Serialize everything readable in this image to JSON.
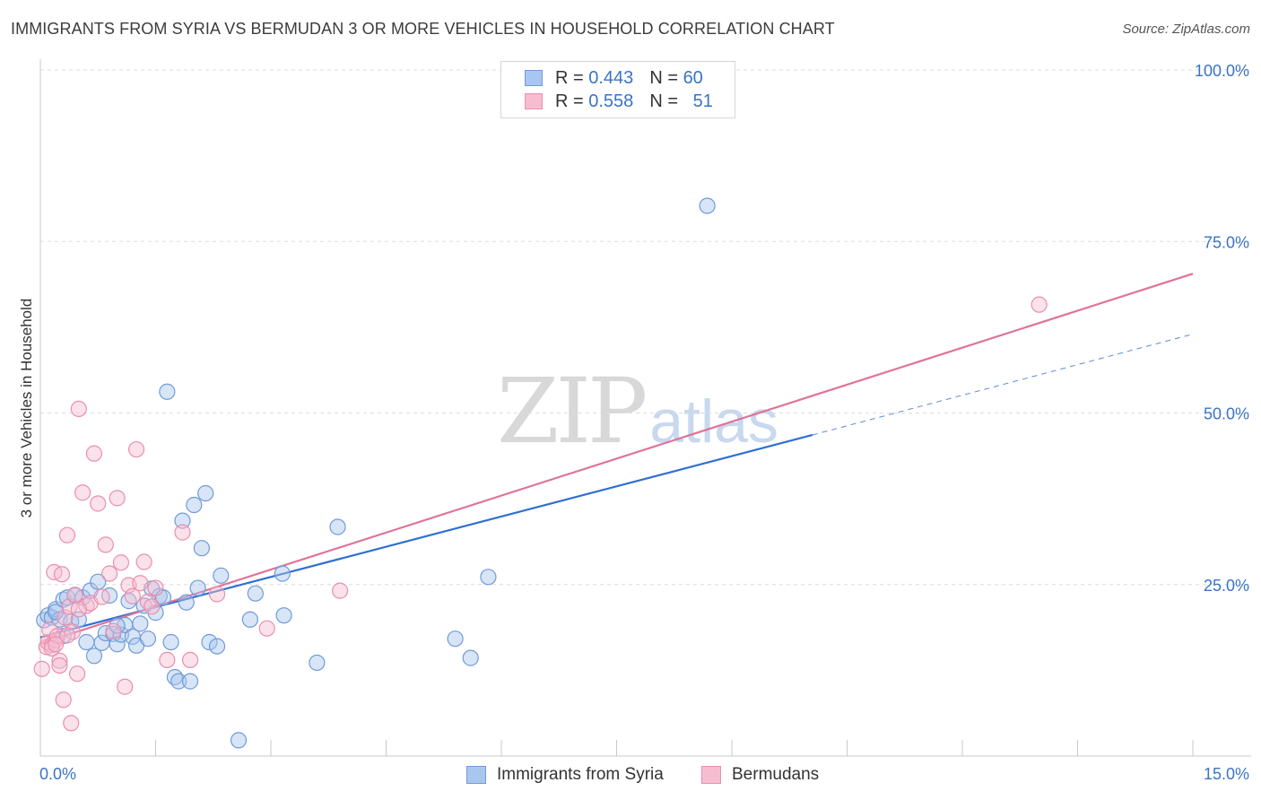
{
  "header": {
    "title": "IMMIGRANTS FROM SYRIA VS BERMUDAN 3 OR MORE VEHICLES IN HOUSEHOLD CORRELATION CHART",
    "source": "Source: ZipAtlas.com"
  },
  "watermark": {
    "zip": "ZIP",
    "atlas": "atlas"
  },
  "legend": {
    "rows": [
      {
        "r_label": "R =",
        "r_value": "0.443",
        "n_label": "N =",
        "n_value": "60",
        "color": "#a9c6ee",
        "border": "#6f9bd8"
      },
      {
        "r_label": "R =",
        "r_value": "0.558",
        "n_label": "N =",
        "n_value": "51",
        "color": "#f7bcd0",
        "border": "#e98fae"
      }
    ]
  },
  "bottom_legend": {
    "items": [
      {
        "label": "Immigrants from Syria",
        "color": "#a9c6ee",
        "border": "#6f9bd8"
      },
      {
        "label": "Bermudans",
        "color": "#f7bcd0",
        "border": "#e98fae"
      }
    ]
  },
  "chart_data": {
    "type": "scatter",
    "title": "IMMIGRANTS FROM SYRIA VS BERMUDAN 3 OR MORE VEHICLES IN HOUSEHOLD CORRELATION CHART",
    "xlabel": "",
    "ylabel": "3 or more Vehicles in Household",
    "xlim": [
      0,
      15
    ],
    "ylim": [
      0,
      100
    ],
    "x_tick_labels": [
      "0.0%",
      "15.0%"
    ],
    "y_tick_labels": [
      "25.0%",
      "50.0%",
      "75.0%",
      "100.0%"
    ],
    "y_ticks": [
      25,
      50,
      75,
      100
    ],
    "grid": true,
    "series": [
      {
        "name": "Immigrants from Syria",
        "color": "#6f9bd8",
        "fill": "#a9c6ee",
        "line_color": "#2f6fd1",
        "trend": {
          "x0": 0,
          "y0": 17.3,
          "x1": 10.05,
          "y1": 46.8,
          "dash_x1": 15,
          "dash_y1": 61.5
        },
        "points": [
          [
            0.05,
            19.8
          ],
          [
            0.1,
            20.5
          ],
          [
            0.15,
            20.2
          ],
          [
            0.2,
            21.4
          ],
          [
            0.25,
            19.9
          ],
          [
            0.3,
            22.8
          ],
          [
            0.35,
            23.1
          ],
          [
            0.4,
            19.6
          ],
          [
            0.45,
            23.4
          ],
          [
            0.5,
            19.9
          ],
          [
            0.55,
            23.1
          ],
          [
            0.6,
            16.6
          ],
          [
            0.65,
            24.1
          ],
          [
            0.7,
            14.6
          ],
          [
            0.75,
            25.4
          ],
          [
            0.8,
            16.5
          ],
          [
            0.85,
            17.9
          ],
          [
            0.9,
            23.4
          ],
          [
            0.95,
            17.8
          ],
          [
            1.0,
            16.3
          ],
          [
            1.05,
            17.7
          ],
          [
            1.1,
            19.1
          ],
          [
            1.15,
            22.6
          ],
          [
            1.2,
            17.4
          ],
          [
            1.25,
            16.1
          ],
          [
            1.3,
            19.3
          ],
          [
            1.35,
            21.9
          ],
          [
            1.4,
            17.1
          ],
          [
            1.45,
            24.4
          ],
          [
            1.5,
            20.9
          ],
          [
            1.55,
            23.3
          ],
          [
            1.6,
            23.1
          ],
          [
            1.65,
            53.1
          ],
          [
            1.7,
            16.6
          ],
          [
            1.75,
            11.5
          ],
          [
            1.8,
            10.9
          ],
          [
            1.85,
            34.3
          ],
          [
            1.9,
            22.4
          ],
          [
            1.95,
            10.9
          ],
          [
            2.0,
            36.6
          ],
          [
            2.05,
            24.5
          ],
          [
            2.1,
            30.3
          ],
          [
            2.15,
            38.3
          ],
          [
            2.2,
            16.6
          ],
          [
            2.3,
            16.0
          ],
          [
            2.35,
            26.3
          ],
          [
            2.58,
            2.3
          ],
          [
            2.73,
            19.9
          ],
          [
            2.8,
            23.7
          ],
          [
            3.15,
            26.6
          ],
          [
            3.17,
            20.5
          ],
          [
            3.6,
            13.6
          ],
          [
            3.87,
            33.4
          ],
          [
            5.4,
            17.1
          ],
          [
            5.6,
            14.3
          ],
          [
            5.83,
            26.1
          ],
          [
            8.68,
            80.2
          ],
          [
            0.2,
            21.0
          ],
          [
            0.3,
            17.5
          ],
          [
            1.0,
            19.0
          ]
        ]
      },
      {
        "name": "Bermudans",
        "color": "#e98fae",
        "fill": "#f7bcd0",
        "line_color": "#e0739a",
        "trend": {
          "x0": 0,
          "y0": 16.4,
          "x1": 15,
          "y1": 70.3
        },
        "points": [
          [
            0.02,
            12.7
          ],
          [
            0.08,
            15.9
          ],
          [
            0.1,
            16.6
          ],
          [
            0.12,
            18.4
          ],
          [
            0.15,
            16.2
          ],
          [
            0.18,
            26.8
          ],
          [
            0.2,
            16.9
          ],
          [
            0.22,
            17.5
          ],
          [
            0.25,
            13.9
          ],
          [
            0.28,
            26.5
          ],
          [
            0.3,
            8.2
          ],
          [
            0.32,
            20.2
          ],
          [
            0.35,
            32.2
          ],
          [
            0.38,
            21.8
          ],
          [
            0.4,
            4.8
          ],
          [
            0.42,
            18.1
          ],
          [
            0.45,
            23.5
          ],
          [
            0.48,
            12.0
          ],
          [
            0.5,
            50.6
          ],
          [
            0.55,
            38.4
          ],
          [
            0.6,
            21.9
          ],
          [
            0.65,
            22.3
          ],
          [
            0.7,
            44.1
          ],
          [
            0.75,
            36.8
          ],
          [
            0.8,
            23.2
          ],
          [
            0.85,
            30.8
          ],
          [
            0.9,
            26.6
          ],
          [
            0.95,
            18.2
          ],
          [
            1.0,
            37.6
          ],
          [
            1.05,
            28.2
          ],
          [
            1.1,
            10.1
          ],
          [
            1.15,
            24.9
          ],
          [
            1.2,
            23.3
          ],
          [
            1.25,
            44.7
          ],
          [
            1.3,
            25.2
          ],
          [
            1.35,
            28.3
          ],
          [
            1.4,
            22.5
          ],
          [
            1.45,
            21.8
          ],
          [
            1.5,
            24.5
          ],
          [
            1.65,
            14.0
          ],
          [
            1.85,
            32.6
          ],
          [
            1.95,
            14.0
          ],
          [
            2.3,
            23.6
          ],
          [
            2.95,
            18.6
          ],
          [
            3.9,
            24.1
          ],
          [
            13.0,
            65.8
          ],
          [
            0.15,
            15.7
          ],
          [
            0.2,
            16.3
          ],
          [
            0.25,
            13.2
          ],
          [
            0.35,
            17.6
          ],
          [
            0.5,
            21.4
          ]
        ]
      }
    ]
  }
}
